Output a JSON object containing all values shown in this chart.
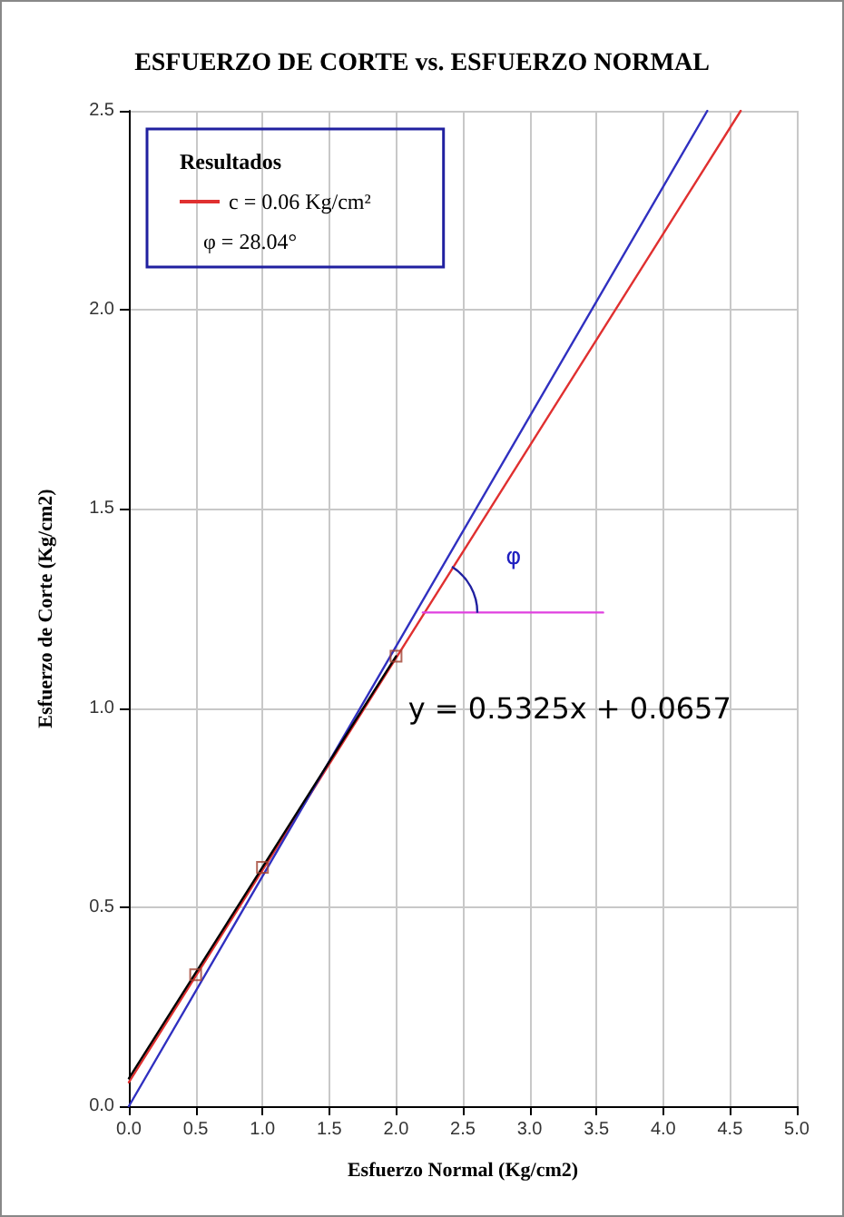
{
  "chart_data": {
    "type": "scatter",
    "title": "ESFUERZO DE CORTE vs. ESFUERZO NORMAL",
    "xlabel": "Esfuerzo Normal (Kg/cm2)",
    "ylabel": "Esfuerzo de Corte (Kg/cm2)",
    "legend_title": "Resultados",
    "xlim": [
      0,
      5
    ],
    "xticks": [
      {
        "value": 0,
        "label": "0.0"
      },
      0.5,
      {
        "value": 1,
        "label": "1.0"
      },
      1.5,
      {
        "value": 2,
        "label": "2.0"
      },
      2.5,
      {
        "value": 3,
        "label": "3.0"
      },
      3.5,
      {
        "value": 4,
        "label": "4.0"
      },
      4.5,
      {
        "value": 5,
        "label": "5.0"
      }
    ],
    "ylim": [
      0,
      2.5
    ],
    "yticks": [
      {
        "value": 0,
        "label": "0.0"
      },
      0.5,
      {
        "value": 1,
        "label": "1.0"
      },
      1.5,
      {
        "value": 2,
        "label": "2.0"
      },
      2.5
    ],
    "grid": true,
    "legend": "top left",
    "series": [
      {
        "marker": "square",
        "color": "#a04030",
        "x": [
          0.5,
          1.0,
          2.0
        ],
        "values": [
          0.33,
          0.6,
          1.13
        ]
      },
      {
        "type": "line",
        "name": "c = 0.06 Kg/cm²",
        "marker": "none",
        "color": "#e03030",
        "x": [
          0,
          4.58
        ],
        "values": [
          0.06,
          2.5
        ]
      },
      {
        "type": "line",
        "marker": "none",
        "color": "#3030c0",
        "x": [
          0,
          4.33
        ],
        "values": [
          0,
          2.5
        ]
      },
      {
        "type": "line",
        "marker": "none",
        "color": "#000000",
        "x": [
          0,
          2.0
        ],
        "values": [
          0.07,
          1.13
        ]
      },
      {
        "type": "line",
        "marker": "none",
        "color": "#e040e0",
        "x": [
          2.2,
          3.55
        ],
        "values": [
          1.24,
          1.24
        ]
      }
    ],
    "annotations": [
      "y = 0.5325x + 0.0657",
      "φ",
      "φ = 28.04°"
    ]
  }
}
